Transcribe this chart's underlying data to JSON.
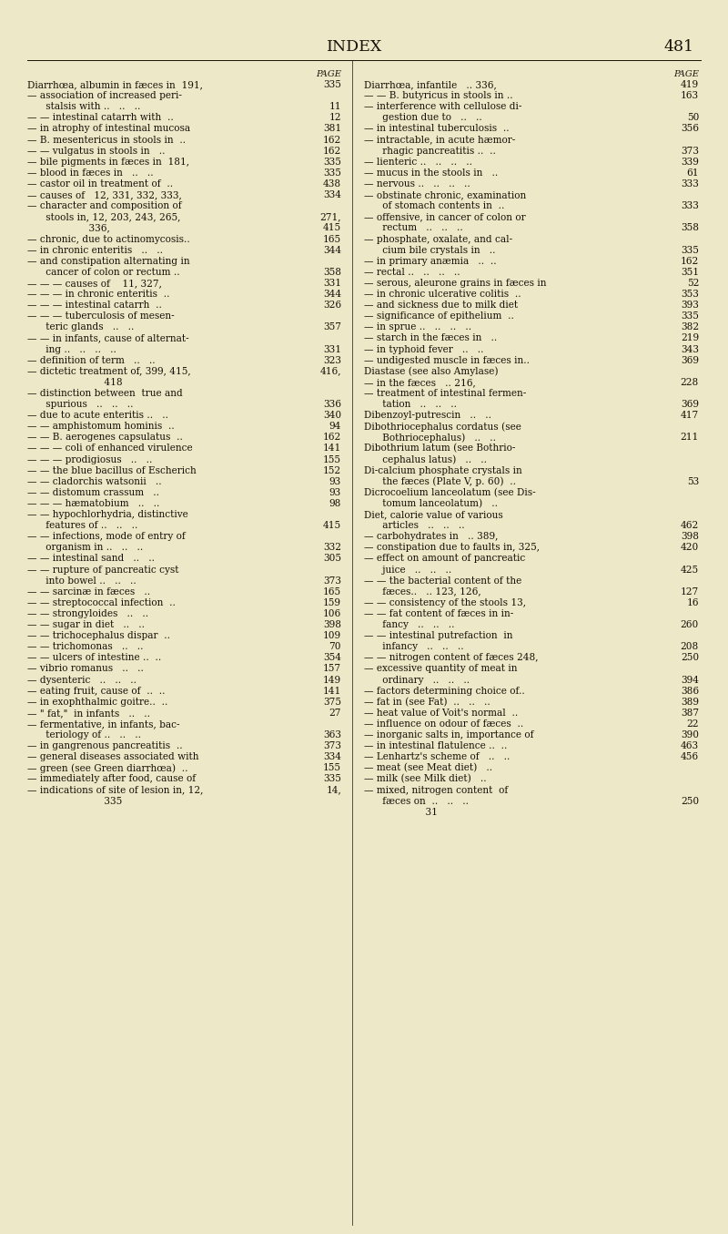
{
  "title": "INDEX",
  "page_number": "481",
  "bg_color": "#ede9c8",
  "text_color": "#1a1008",
  "title_fontsize": 12.5,
  "body_fontsize": 7.6,
  "left_col_lines": [
    [
      "PAGE",
      "r",
      ""
    ],
    [
      "Diarrhœa, albumin in fæces in  191,",
      "r",
      "335"
    ],
    [
      "— association of increased peri-",
      "l",
      ""
    ],
    [
      "      stalsis with ..   ..   ..",
      "r",
      "11"
    ],
    [
      "— — intestinal catarrh with  ..",
      "r",
      "12"
    ],
    [
      "— in atrophy of intestinal mucosa",
      "r",
      "381"
    ],
    [
      "— B. mesentericus in stools in  ..",
      "r",
      "162"
    ],
    [
      "— — vulgatus in stools in   ..",
      "r",
      "162"
    ],
    [
      "— bile pigments in fæces in  181,",
      "r",
      "335"
    ],
    [
      "— blood in fæces in   ..   ..",
      "r",
      "335"
    ],
    [
      "— castor oil in treatment of  ..",
      "r",
      "438"
    ],
    [
      "— causes of   12, 331, 332, 333,",
      "r",
      "334"
    ],
    [
      "— character and composition of",
      "l",
      ""
    ],
    [
      "      stools in, 12, 203, 243, 265,",
      "r",
      "271,"
    ],
    [
      "                    336,",
      "r",
      "415"
    ],
    [
      "— chronic, due to actinomycosis..",
      "r",
      "165"
    ],
    [
      "— in chronic enteritis   ..   ..",
      "r",
      "344"
    ],
    [
      "— and constipation alternating in",
      "l",
      ""
    ],
    [
      "      cancer of colon or rectum ..",
      "r",
      "358"
    ],
    [
      "— — — causes of    11, 327,",
      "r",
      "331"
    ],
    [
      "— — — in chronic enteritis  ..",
      "r",
      "344"
    ],
    [
      "— — — intestinal catarrh  ..",
      "r",
      "326"
    ],
    [
      "— — — tuberculosis of mesen-",
      "l",
      ""
    ],
    [
      "      teric glands   ..   ..",
      "r",
      "357"
    ],
    [
      "— — in infants, cause of alternat-",
      "l",
      ""
    ],
    [
      "      ing ..   ..   ..   ..",
      "r",
      "331"
    ],
    [
      "— definition of term   ..   ..",
      "r",
      "323"
    ],
    [
      "— dictetic treatment of, 399, 415,",
      "r",
      "416,"
    ],
    [
      "                         418",
      "l",
      ""
    ],
    [
      "— distinction between  true and",
      "l",
      ""
    ],
    [
      "      spurious   ..   ..   ..",
      "r",
      "336"
    ],
    [
      "— due to acute enteritis ..   ..",
      "r",
      "340"
    ],
    [
      "— — amphistomum hominis  ..",
      "r",
      "94"
    ],
    [
      "— — B. aerogenes capsulatus  ..",
      "r",
      "162"
    ],
    [
      "— — — coli of enhanced virulence",
      "r",
      "141"
    ],
    [
      "— — — prodigiosus   ..   ..",
      "r",
      "155"
    ],
    [
      "— — the blue bacillus of Escherich",
      "r",
      "152"
    ],
    [
      "— — cladorchis watsonii   ..",
      "r",
      "93"
    ],
    [
      "— — distomum crassum   ..",
      "r",
      "93"
    ],
    [
      "— — — hæmatobium   ..   ..",
      "r",
      "98"
    ],
    [
      "— — hypochlorhydria, distinctive",
      "l",
      ""
    ],
    [
      "      features of ..   ..   ..",
      "r",
      "415"
    ],
    [
      "— — infections, mode of entry of",
      "l",
      ""
    ],
    [
      "      organism in ..   ..   ..",
      "r",
      "332"
    ],
    [
      "— — intestinal sand   ..   ..",
      "r",
      "305"
    ],
    [
      "— — rupture of pancreatic cyst",
      "l",
      ""
    ],
    [
      "      into bowel ..   ..   ..",
      "r",
      "373"
    ],
    [
      "— — sarcinæ in fæces   ..",
      "r",
      "165"
    ],
    [
      "— — streptococcal infection  ..",
      "r",
      "159"
    ],
    [
      "— — strongyloides   ..   ..",
      "r",
      "106"
    ],
    [
      "— — sugar in diet   ..   ..",
      "r",
      "398"
    ],
    [
      "— — trichocephalus dispar  ..",
      "r",
      "109"
    ],
    [
      "— — trichomonas   ..   ..",
      "r",
      "70"
    ],
    [
      "— — ulcers of intestine ..  ..",
      "r",
      "354"
    ],
    [
      "— vibrio romanus   ..   ..",
      "r",
      "157"
    ],
    [
      "— dysenteric   ..   ..   ..",
      "r",
      "149"
    ],
    [
      "— eating fruit, cause of  ..  ..",
      "r",
      "141"
    ],
    [
      "— in exophthalmic goitre..  ..",
      "r",
      "375"
    ],
    [
      "— \" fat,\"  in infants   ..   ..",
      "r",
      "27"
    ],
    [
      "— fermentative, in infants, bac-",
      "l",
      ""
    ],
    [
      "      teriology of ..   ..   ..",
      "r",
      "363"
    ],
    [
      "— in gangrenous pancreatitis  ..",
      "r",
      "373"
    ],
    [
      "— general diseases associated with",
      "r",
      "334"
    ],
    [
      "— green (see Green diarrhœa)  ..",
      "r",
      "155"
    ],
    [
      "— immediately after food, cause of",
      "r",
      "335"
    ],
    [
      "— indications of site of lesion in, 12,",
      "r",
      "14,"
    ],
    [
      "                         335",
      "l",
      ""
    ]
  ],
  "right_col_lines": [
    [
      "PAGE",
      "r",
      ""
    ],
    [
      "Diarrhœa, infantile   .. 336,",
      "r",
      "419"
    ],
    [
      "— — B. butyricus in stools in ..",
      "r",
      "163"
    ],
    [
      "— interference with cellulose di-",
      "l",
      ""
    ],
    [
      "      gestion due to   ..   ..",
      "r",
      "50"
    ],
    [
      "— in intestinal tuberculosis  ..",
      "r",
      "356"
    ],
    [
      "— intractable, in acute hæmor-",
      "l",
      ""
    ],
    [
      "      rhagic pancreatitis ..  ..",
      "r",
      "373"
    ],
    [
      "— lienteric ..   ..   ..   ..",
      "r",
      "339"
    ],
    [
      "— mucus in the stools in   ..",
      "r",
      "61"
    ],
    [
      "— nervous ..   ..   ..   ..",
      "r",
      "333"
    ],
    [
      "— obstinate chronic, examination",
      "l",
      ""
    ],
    [
      "      of stomach contents in  ..",
      "r",
      "333"
    ],
    [
      "— offensive, in cancer of colon or",
      "l",
      ""
    ],
    [
      "      rectum   ..   ..   ..",
      "r",
      "358"
    ],
    [
      "— phosphate, oxalate, and cal-",
      "l",
      ""
    ],
    [
      "      cium bile crystals in   ..",
      "r",
      "335"
    ],
    [
      "— in primary anæmia   ..  ..",
      "r",
      "162"
    ],
    [
      "— rectal ..   ..   ..   ..",
      "r",
      "351"
    ],
    [
      "— serous, aleurone grains in fæces in",
      "r",
      "52"
    ],
    [
      "— in chronic ulcerative colitis  ..",
      "r",
      "353"
    ],
    [
      "— and sickness due to milk diet",
      "r",
      "393"
    ],
    [
      "— significance of epithelium  ..",
      "r",
      "335"
    ],
    [
      "— in sprue ..   ..   ..   ..",
      "r",
      "382"
    ],
    [
      "— starch in the fæces in   ..",
      "r",
      "219"
    ],
    [
      "— in typhoid fever   ..   ..",
      "r",
      "343"
    ],
    [
      "— undigested muscle in fæces in..",
      "r",
      "369"
    ],
    [
      "Diastase (see also Amylase)",
      "l",
      ""
    ],
    [
      "— in the fæces   .. 216,",
      "r",
      "228"
    ],
    [
      "— treatment of intestinal fermen-",
      "l",
      ""
    ],
    [
      "      tation   ..   ..   ..",
      "r",
      "369"
    ],
    [
      "Dibenzoyl-putrescin   ..   ..",
      "r",
      "417"
    ],
    [
      "Dibothriocephalus cordatus (see",
      "l",
      ""
    ],
    [
      "      Bothriocephalus)   ..   ..",
      "r",
      "211"
    ],
    [
      "Dibothrium latum (see Bothrio-",
      "l",
      ""
    ],
    [
      "      cephalus latus)   ..   ..",
      "l",
      ""
    ],
    [
      "Di-calcium phosphate crystals in",
      "l",
      ""
    ],
    [
      "      the fæces (Plate V, p. 60)  ..",
      "r",
      "53"
    ],
    [
      "Dicrocoelium lanceolatum (see Dis-",
      "l",
      ""
    ],
    [
      "      tomum lanceolatum)   ..",
      "l",
      ""
    ],
    [
      "Diet, calorie value of various",
      "l",
      ""
    ],
    [
      "      articles   ..   ..   ..",
      "r",
      "462"
    ],
    [
      "— carbohydrates in   .. 389,",
      "r",
      "398"
    ],
    [
      "— constipation due to faults in, 325,",
      "r",
      "420"
    ],
    [
      "— effect on amount of pancreatic",
      "l",
      ""
    ],
    [
      "      juice   ..   ..   ..",
      "r",
      "425"
    ],
    [
      "— — the bacterial content of the",
      "l",
      ""
    ],
    [
      "      fæces..   .. 123, 126,",
      "r",
      "127"
    ],
    [
      "— — consistency of the stools 13,",
      "r",
      "16"
    ],
    [
      "— — fat content of fæces in in-",
      "l",
      ""
    ],
    [
      "      fancy   ..   ..   ..",
      "r",
      "260"
    ],
    [
      "— — intestinal putrefaction  in",
      "l",
      ""
    ],
    [
      "      infancy   ..   ..   ..",
      "r",
      "208"
    ],
    [
      "— — nitrogen content of fæces 248,",
      "r",
      "250"
    ],
    [
      "— excessive quantity of meat in",
      "l",
      ""
    ],
    [
      "      ordinary   ..   ..   ..",
      "r",
      "394"
    ],
    [
      "— factors determining choice of..",
      "r",
      "386"
    ],
    [
      "— fat in (see Fat)  ..   ..   ..",
      "r",
      "389"
    ],
    [
      "— heat value of Voit's normal  ..",
      "r",
      "387"
    ],
    [
      "— influence on odour of fæces  ..",
      "r",
      "22"
    ],
    [
      "— inorganic salts in, importance of",
      "r",
      "390"
    ],
    [
      "— in intestinal flatulence ..  ..",
      "r",
      "463"
    ],
    [
      "— Lenhartz's scheme of   ..   ..",
      "r",
      "456"
    ],
    [
      "— meat (see Meat diet)   ..",
      "l",
      ""
    ],
    [
      "— milk (see Milk diet)   ..",
      "l",
      ""
    ],
    [
      "— mixed, nitrogen content  of",
      "l",
      ""
    ],
    [
      "      fæces on  ..   ..   ..",
      "r",
      "250"
    ],
    [
      "                    31",
      "l",
      ""
    ]
  ]
}
